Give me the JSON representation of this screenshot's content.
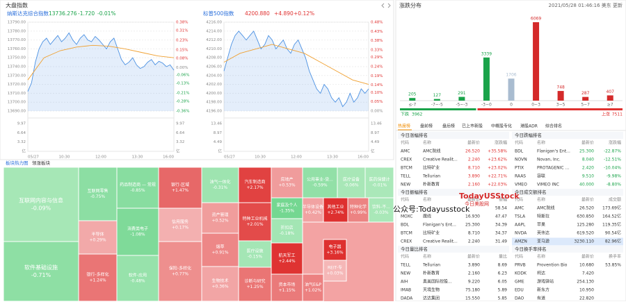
{
  "header": {
    "title": "大盘指数"
  },
  "indices": [
    {
      "name": "纳斯达克综合指数",
      "price": "13736.276",
      "change": "-1.720",
      "pct": "-0.01%",
      "color": "#1aa34a",
      "chart": {
        "type": "line",
        "xticks": [
          "05/27",
          "10:30",
          "12:00",
          "13:30",
          "16:00"
        ],
        "series": [
          {
            "color": "#4a90e2",
            "values": [
              13712,
              13722,
              13745,
              13760,
              13768,
              13772,
              13765,
              13770,
              13775,
              13768,
              13772,
              13778,
              13770,
              13765,
              13772,
              13776,
              13770,
              13768,
              13774,
              13770,
              13765,
              13760,
              13768,
              13772,
              13760,
              13748,
              13742,
              13745,
              13750,
              13742,
              13738,
              13740,
              13745,
              13748,
              13742,
              13746,
              13744,
              13740,
              13742,
              13736
            ]
          },
          {
            "color": "#f0a030",
            "values": [
              13725,
              13750,
              13758,
              13762,
              13764,
              13763,
              13760,
              13756,
              13752,
              13750
            ]
          }
        ],
        "ylim": [
          13690,
          13790
        ],
        "yticks": [
          {
            "value": 13790,
            "label": "13790.00"
          },
          {
            "value": 13780,
            "label": "13780.00"
          },
          {
            "value": 13770,
            "label": "13770.00"
          },
          {
            "value": 13760,
            "label": "13760.00"
          },
          {
            "value": 13750,
            "label": "13750.00"
          },
          {
            "value": 13740,
            "label": "13740.00"
          },
          {
            "value": 13730,
            "label": "13730.00"
          },
          {
            "value": 13720,
            "label": "13720.00"
          },
          {
            "value": 13710,
            "label": "13710.00"
          },
          {
            "value": 13700,
            "label": "13700.00"
          },
          {
            "value": 13690,
            "label": "13690.00"
          }
        ],
        "y2lim": [
          -0.36,
          0.38
        ],
        "y2ticks": [
          {
            "value": 0.38,
            "label": "0.38%"
          },
          {
            "value": 0.31,
            "label": "0.31%"
          },
          {
            "value": 0.23,
            "label": "0.23%"
          },
          {
            "value": 0.15,
            "label": "0.15%"
          },
          {
            "value": 0.08,
            "label": "0.08%"
          },
          {
            "value": 0,
            "label": "0.00%"
          },
          {
            "value": -0.06,
            "label": "-0.06%"
          },
          {
            "value": -0.13,
            "label": "-0.13%"
          },
          {
            "value": -0.21,
            "label": "-0.21%"
          },
          {
            "value": -0.28,
            "label": "-0.28%"
          },
          {
            "value": -0.36,
            "label": "-0.36%"
          }
        ],
        "volume_ticks": [
          "9.97",
          "6.64",
          "3.32",
          "亿"
        ]
      }
    },
    {
      "name": "标普500指数",
      "price": "4200.880",
      "change": "+4.890",
      "pct": "+0.12%",
      "color": "#e0302f",
      "chart": {
        "type": "line",
        "xticks": [
          "05/27",
          "10:30",
          "12:00",
          "13:30",
          "16:00"
        ],
        "series": [
          {
            "color": "#4a90e2",
            "values": [
              4205,
              4208,
              4211,
              4213,
              4214,
              4213,
              4212,
              4213,
              4214,
              4212,
              4210,
              4211,
              4213,
              4212,
              4210,
              4211,
              4212,
              4210,
              4209,
              4211,
              4212,
              4210,
              4208,
              4205,
              4203,
              4201,
              4200,
              4202,
              4201,
              4199,
              4198,
              4199,
              4197,
              4198,
              4200,
              4198,
              4199,
              4201,
              4200,
              4201
            ]
          },
          {
            "color": "#f0a030",
            "values": [
              4207,
              4209,
              4210,
              4211,
              4210,
              4209,
              4207,
              4205,
              4203,
              4202
            ]
          }
        ],
        "ylim": [
          4196,
          4216
        ],
        "yticks": [
          {
            "value": 4216,
            "label": "4216.00"
          },
          {
            "value": 4214,
            "label": "4214.00"
          },
          {
            "value": 4212,
            "label": "4212.00"
          },
          {
            "value": 4210,
            "label": "4210.00"
          },
          {
            "value": 4208,
            "label": "4208.00"
          },
          {
            "value": 4206,
            "label": "4206.00"
          },
          {
            "value": 4204,
            "label": "4204.00"
          },
          {
            "value": 4202,
            "label": "4202.00"
          },
          {
            "value": 4200,
            "label": "4200.00"
          },
          {
            "value": 4198,
            "label": "4198.00"
          },
          {
            "value": 4196,
            "label": "4196.00"
          }
        ],
        "y2lim": [
          0,
          0.48
        ],
        "y2ticks": [
          {
            "value": 0.48,
            "label": "0.48%"
          },
          {
            "value": 0.43,
            "label": "0.43%"
          },
          {
            "value": 0.38,
            "label": "0.38%"
          },
          {
            "value": 0.33,
            "label": "0.33%"
          },
          {
            "value": 0.29,
            "label": "0.29%"
          },
          {
            "value": 0.24,
            "label": "0.24%"
          },
          {
            "value": 0.19,
            "label": "0.19%"
          },
          {
            "value": 0.14,
            "label": "0.14%"
          },
          {
            "value": 0.1,
            "label": "0.10%"
          },
          {
            "value": 0.05,
            "label": "0.05%"
          },
          {
            "value": 0,
            "label": "0.00%"
          }
        ],
        "volume_ticks": [
          "13.46",
          "8.97",
          "4.49",
          "亿"
        ]
      }
    }
  ],
  "heatmap": {
    "tabs": [
      "板块热力图",
      "领涨板块"
    ],
    "cells": [
      {
        "name": "互联网内容与信息",
        "value": -0.09,
        "label": "-0.09%"
      },
      {
        "name": "软件基础设施",
        "value": -0.71,
        "label": "-0.71%"
      },
      {
        "name": "互联网零售",
        "value": -0.75,
        "label": "-0.75%"
      },
      {
        "name": "半导体",
        "value": 0.29,
        "label": "+0.29%"
      },
      {
        "name": "银行-多样化",
        "value": 1.24,
        "label": "+1.24%"
      },
      {
        "name": "药品制造商 — 常规",
        "value": -0.85,
        "label": "-0.85%"
      },
      {
        "name": "消费类电子",
        "value": -1.08,
        "label": "-1.08%"
      },
      {
        "name": "软件-应用",
        "value": -0.48,
        "label": "-0.48%"
      },
      {
        "name": "银行-区域",
        "value": 1.47,
        "label": "+1.47%"
      },
      {
        "name": "信用服务",
        "value": 0.17,
        "label": "+0.17%"
      },
      {
        "name": "保险-多样化",
        "value": 0.77,
        "label": "+0.77%"
      },
      {
        "name": "油气一体化",
        "value": -0.31,
        "label": "-0.31%"
      },
      {
        "name": "资产管理",
        "value": 0.52,
        "label": "+0.52%"
      },
      {
        "name": "烟草",
        "value": 0.91,
        "label": "+0.91%"
      },
      {
        "name": "生物技术",
        "value": 0.36,
        "label": "+0.36%"
      },
      {
        "name": "汽车制造商",
        "value": 2.17,
        "label": "+2.17%"
      },
      {
        "name": "特种工业机械",
        "value": 2.01,
        "label": "+2.01%"
      },
      {
        "name": "医疗设施",
        "value": -0.15,
        "label": "-0.15%"
      },
      {
        "name": "诊断与研究",
        "value": 1.25,
        "label": "+1.25%"
      },
      {
        "name": "房地产",
        "value": 0.53,
        "label": "+0.53%"
      },
      {
        "name": "家庭及个人",
        "value": -1.35,
        "label": "-1.35%"
      },
      {
        "name": "航天军工",
        "value": 2.44,
        "label": "+2.44%"
      },
      {
        "name": "资本市场",
        "value": 1.15,
        "label": "+1.15%"
      },
      {
        "name": "公用事业-受...",
        "value": -0.59,
        "label": "-0.59%"
      },
      {
        "name": "医疗设备",
        "value": -0.06,
        "label": "-0.06%"
      },
      {
        "name": "医药保健计",
        "value": -0.01,
        "label": "-0.01%"
      },
      {
        "name": "半导体设备",
        "value": 0.42,
        "label": "+0.42%"
      },
      {
        "name": "其他工业",
        "value": 2.74,
        "label": "+2.74%"
      },
      {
        "name": "特种化学",
        "value": 0.99,
        "label": "+0.99%"
      },
      {
        "name": "饮料-不...",
        "value": -0.03,
        "label": "-0.03%"
      },
      {
        "name": "折扣店",
        "value": -0.18,
        "label": "-0.18%"
      },
      {
        "name": "电子器",
        "value": 3.16,
        "label": "+3.16%"
      },
      {
        "name": "REIT-专",
        "value": 0.03,
        "label": "+0.03%"
      },
      {
        "name": "油气E&P",
        "value": 1.02,
        "label": "+1.02%"
      }
    ]
  },
  "distribution": {
    "title": "涨跌分布",
    "updated": "2021/05/28 01:46:16 美东 更新",
    "chart": {
      "type": "bar",
      "categories": [
        "≤-7",
        "-7~-5",
        "-5~-3",
        "-3~0",
        "0",
        "0~3",
        "3~5",
        "5~7",
        "≥7"
      ],
      "values": [
        205,
        127,
        291,
        3339,
        1706,
        6069,
        748,
        287,
        407
      ],
      "colors": [
        "#1aa34a",
        "#1aa34a",
        "#1aa34a",
        "#1aa34a",
        "#a9bcd0",
        "#d42a2a",
        "#d42a2a",
        "#d42a2a",
        "#d42a2a"
      ]
    },
    "down": {
      "label": "下跌",
      "value": 3962,
      "color": "#1aa34a"
    },
    "up": {
      "label": "上涨",
      "value": 7511,
      "color": "#e0302f"
    }
  },
  "tabs": [
    "热度榜",
    "盘前榜",
    "盘后榜",
    "已上市新股",
    "中概股专化",
    "港股ADR",
    "综合排名"
  ],
  "rankings": [
    {
      "title": "今日涨幅排名",
      "columns": [
        "代码",
        "名称",
        "最新价",
        "涨跌幅"
      ],
      "rows": [
        {
          "code": "AMC",
          "name": "AMC院线",
          "price": "26.520",
          "value": "+35.58%"
        },
        {
          "code": "CREX",
          "name": "Creative Realit...",
          "price": "2.240",
          "value": "+23.62%"
        },
        {
          "code": "BTCM",
          "name": "比特矿业",
          "price": "8.710",
          "value": "+23.02%"
        },
        {
          "code": "TELL",
          "name": "Tellurian",
          "price": "3.890",
          "value": "+22.71%"
        },
        {
          "code": "NEW",
          "name": "朴新教育",
          "price": "2.160",
          "value": "+22.03%"
        }
      ]
    },
    {
      "title": "今日跌幅排名",
      "columns": [
        "代码",
        "名称",
        "最新价",
        "涨跌幅"
      ],
      "rows": [
        {
          "code": "BDL",
          "name": "Flanigan's Ent...",
          "price": "25.300",
          "value": "-22.87%"
        },
        {
          "code": "NOVN",
          "name": "Novan, Inc.",
          "price": "8.040",
          "value": "-12.51%"
        },
        {
          "code": "PTIX",
          "name": "PROTAGENIC ...",
          "price": "2.420",
          "value": "-10.04%"
        },
        {
          "code": "RAAS",
          "name": "容联",
          "price": "9.510",
          "value": "-9.98%"
        },
        {
          "code": "VMEO",
          "name": "VIMEO INC",
          "price": "40.000",
          "value": "-8.80%"
        }
      ]
    },
    {
      "title": "今日振幅排名",
      "columns": [
        "代码",
        "名称",
        "最新价",
        "振幅"
      ],
      "rows": [
        {
          "value": "58.54"
        },
        {
          "code": "MOXC",
          "name": "魔线",
          "price": "16.930",
          "value": "47.47"
        },
        {
          "code": "BDL",
          "name": "Flanigan's Ent...",
          "price": "25.300",
          "value": "34.39"
        },
        {
          "code": "BTCM",
          "name": "比特矿业",
          "price": "8.710",
          "value": "34.37"
        },
        {
          "code": "CREX",
          "name": "Creative Realit...",
          "price": "2.240",
          "value": "31.49"
        }
      ]
    },
    {
      "title": "今日成交额排名",
      "columns": [
        "代码",
        "名称",
        "最新价",
        "成交额"
      ],
      "rows": [
        {
          "code": "AMC",
          "name": "AMC院线",
          "price": "26.520",
          "value": "173.69亿"
        },
        {
          "code": "TSLA",
          "name": "特斯拉",
          "price": "630.850",
          "value": "164.52亿"
        },
        {
          "code": "AAPL",
          "name": "苹果",
          "price": "125.280",
          "value": "119.35亿"
        },
        {
          "code": "NVDA",
          "name": "英伟达",
          "price": "619.520",
          "value": "90.54亿"
        },
        {
          "code": "AMZN",
          "name": "亚马逊",
          "price": "3230.110",
          "value": "82.96亿"
        }
      ]
    },
    {
      "title": "今日量比排名",
      "columns": [
        "代码",
        "名称",
        "最新价",
        "量比"
      ],
      "rows": [
        {
          "code": "TELL",
          "name": "Tellurian",
          "price": "3.890",
          "value": "8.69"
        },
        {
          "code": "NEW",
          "name": "朴新教育",
          "price": "2.160",
          "value": "6.23"
        },
        {
          "code": "AIH",
          "name": "奥美国际控股...",
          "price": "9.220",
          "value": "6.05"
        },
        {
          "code": "IMAB",
          "name": "天境生物",
          "price": "75.180",
          "value": "5.89"
        },
        {
          "code": "DADA",
          "name": "达达集团",
          "price": "15.550",
          "value": "5.85"
        }
      ]
    },
    {
      "title": "今日换手率排名",
      "columns": [
        "代码",
        "名称",
        "最新价",
        "换手率"
      ],
      "rows": [
        {
          "code": "PRVB",
          "name": "Provention Bio",
          "price": "10.680",
          "value": "53.85%"
        },
        {
          "code": "KODK",
          "name": "柯达",
          "price": "7.420"
        },
        {
          "code": "GME",
          "name": "游戏驿站",
          "price": "254.130"
        },
        {
          "code": "EDU",
          "name": "新东方",
          "price": "10.950"
        },
        {
          "code": "DAO",
          "name": "有道",
          "price": "22.820"
        }
      ]
    }
  ],
  "watermarks": [
    "TodayUSStock",
    "今日美股网",
    "公众号:Todayusstock"
  ]
}
